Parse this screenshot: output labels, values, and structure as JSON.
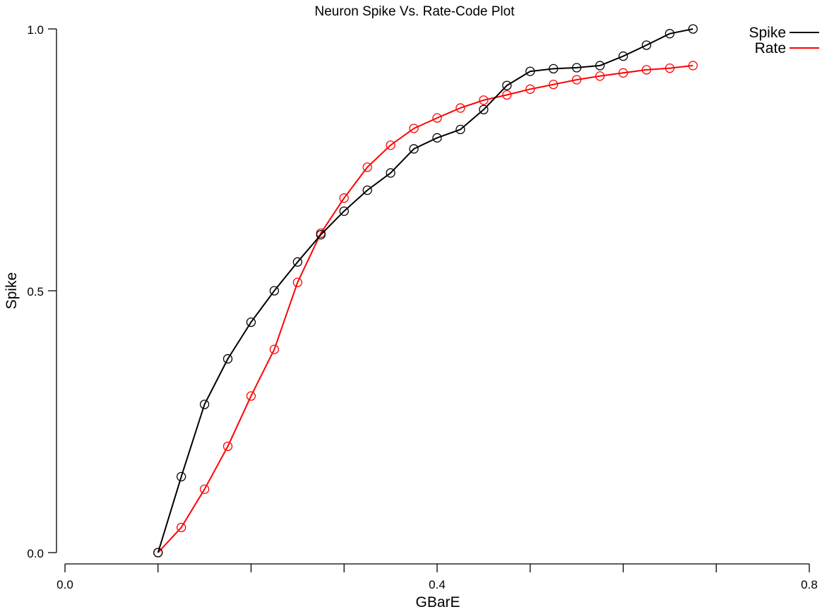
{
  "chart_data": {
    "type": "line",
    "title": "Neuron Spike Vs. Rate-Code Plot",
    "xlabel": "GBarE",
    "ylabel": "Spike",
    "xlim": [
      0.0,
      0.8
    ],
    "ylim": [
      0.0,
      1.0
    ],
    "xticks": [
      "0.0",
      "0.4",
      "0.8"
    ],
    "yticks": [
      "0.0",
      "0.5",
      "1.0"
    ],
    "xtick_values": [
      0.0,
      0.4,
      0.8
    ],
    "ytick_values": [
      0.0,
      0.5,
      1.0
    ],
    "xminor_step": 0.1,
    "grid": false,
    "legend_position": "top-right",
    "marker": "open-circle",
    "series": [
      {
        "name": "Spike",
        "color": "#000000",
        "x": [
          0.1,
          0.125,
          0.15,
          0.175,
          0.2,
          0.225,
          0.25,
          0.275,
          0.3,
          0.325,
          0.35,
          0.375,
          0.4,
          0.425,
          0.45,
          0.475,
          0.5,
          0.525,
          0.55,
          0.575,
          0.6,
          0.625,
          0.65,
          0.675
        ],
        "values": [
          0.0,
          0.145,
          0.283,
          0.37,
          0.44,
          0.5,
          0.555,
          0.607,
          0.652,
          0.692,
          0.725,
          0.771,
          0.792,
          0.808,
          0.846,
          0.892,
          0.919,
          0.924,
          0.926,
          0.93,
          0.948,
          0.969,
          0.991,
          1.0
        ]
      },
      {
        "name": "Rate",
        "color": "#ff0000",
        "x": [
          0.1,
          0.125,
          0.15,
          0.175,
          0.2,
          0.225,
          0.25,
          0.275,
          0.3,
          0.325,
          0.35,
          0.375,
          0.4,
          0.425,
          0.45,
          0.475,
          0.5,
          0.525,
          0.55,
          0.575,
          0.6,
          0.625,
          0.65,
          0.675
        ],
        "values": [
          0.0,
          0.048,
          0.121,
          0.203,
          0.299,
          0.388,
          0.516,
          0.61,
          0.677,
          0.736,
          0.778,
          0.81,
          0.83,
          0.849,
          0.864,
          0.874,
          0.885,
          0.894,
          0.903,
          0.91,
          0.916,
          0.922,
          0.925,
          0.93
        ]
      }
    ]
  }
}
